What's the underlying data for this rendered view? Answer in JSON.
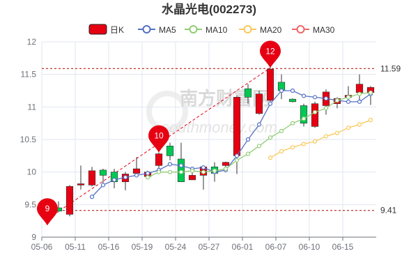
{
  "chart_data": {
    "type": "candlestick",
    "title": "水晶光电(002273)",
    "legend": [
      {
        "label": "日K",
        "color": "#e60012",
        "kind": "box"
      },
      {
        "label": "MA5",
        "color": "#5470c6",
        "kind": "line"
      },
      {
        "label": "MA10",
        "color": "#91cc75",
        "kind": "line"
      },
      {
        "label": "MA20",
        "color": "#fac858",
        "kind": "line"
      },
      {
        "label": "MA30",
        "color": "#ee6666",
        "kind": "line"
      }
    ],
    "ylim": [
      9,
      12
    ],
    "yticks": [
      "9",
      "9.5",
      "10",
      "10.5",
      "11",
      "11.5",
      "12"
    ],
    "x_ticks": [
      "05-06",
      "05-11",
      "05-16",
      "05-19",
      "05-24",
      "05-27",
      "06-01",
      "06-07",
      "06-10",
      "06-15"
    ],
    "up_color": "#e60012",
    "down_color": "#00c853",
    "candles": [
      {
        "o": 9.42,
        "c": 9.55,
        "h": 9.58,
        "l": 9.38,
        "up": true
      },
      {
        "o": 9.45,
        "c": 9.4,
        "h": 9.55,
        "l": 9.38,
        "up": false
      },
      {
        "o": 9.35,
        "c": 9.78,
        "h": 9.8,
        "l": 9.32,
        "up": true
      },
      {
        "o": 9.8,
        "c": 9.82,
        "h": 10.1,
        "l": 9.73,
        "up": true
      },
      {
        "o": 9.8,
        "c": 10.02,
        "h": 10.08,
        "l": 9.78,
        "up": true
      },
      {
        "o": 10.03,
        "c": 9.95,
        "h": 10.05,
        "l": 9.8,
        "up": false
      },
      {
        "o": 10.0,
        "c": 9.85,
        "h": 10.05,
        "l": 9.75,
        "up": false
      },
      {
        "o": 9.85,
        "c": 9.97,
        "h": 10.0,
        "l": 9.72,
        "up": true
      },
      {
        "o": 9.98,
        "c": 10.05,
        "h": 10.23,
        "l": 9.95,
        "up": true
      },
      {
        "o": 9.93,
        "c": 10.0,
        "h": 10.02,
        "l": 9.9,
        "up": true
      },
      {
        "o": 10.1,
        "c": 10.28,
        "h": 10.3,
        "l": 10.05,
        "up": true
      },
      {
        "o": 10.4,
        "c": 10.25,
        "h": 10.45,
        "l": 10.18,
        "up": false
      },
      {
        "o": 10.2,
        "c": 9.85,
        "h": 10.45,
        "l": 9.85,
        "up": false
      },
      {
        "o": 9.88,
        "c": 9.95,
        "h": 10.0,
        "l": 9.88,
        "up": true
      },
      {
        "o": 9.95,
        "c": 10.08,
        "h": 10.1,
        "l": 9.73,
        "up": true
      },
      {
        "o": 10.08,
        "c": 9.98,
        "h": 10.15,
        "l": 9.85,
        "up": false
      },
      {
        "o": 10.1,
        "c": 10.15,
        "h": 10.16,
        "l": 10.07,
        "up": true
      },
      {
        "o": 10.25,
        "c": 11.15,
        "h": 11.18,
        "l": 9.97,
        "up": true
      },
      {
        "o": 11.28,
        "c": 11.15,
        "h": 11.35,
        "l": 11.05,
        "up": false
      },
      {
        "o": 10.9,
        "c": 11.2,
        "h": 11.25,
        "l": 10.88,
        "up": true
      },
      {
        "o": 11.1,
        "c": 11.58,
        "h": 11.6,
        "l": 11.05,
        "up": true
      },
      {
        "o": 11.38,
        "c": 11.25,
        "h": 11.5,
        "l": 11.12,
        "up": false
      },
      {
        "o": 11.12,
        "c": 11.08,
        "h": 11.13,
        "l": 11.07,
        "up": false
      },
      {
        "o": 11.02,
        "c": 10.75,
        "h": 11.05,
        "l": 10.7,
        "up": false
      },
      {
        "o": 10.7,
        "c": 11.05,
        "h": 11.08,
        "l": 10.68,
        "up": true
      },
      {
        "o": 11.02,
        "c": 11.23,
        "h": 11.27,
        "l": 10.88,
        "up": true
      },
      {
        "o": 11.05,
        "c": 11.13,
        "h": 11.15,
        "l": 10.98,
        "up": true
      },
      {
        "o": 11.15,
        "c": 11.18,
        "h": 11.32,
        "l": 11.08,
        "up": true
      },
      {
        "o": 11.22,
        "c": 11.35,
        "h": 11.5,
        "l": 11.1,
        "up": true
      },
      {
        "o": 11.22,
        "c": 11.3,
        "h": 11.32,
        "l": 11.03,
        "up": true
      }
    ],
    "ma5": [
      null,
      null,
      null,
      null,
      9.62,
      9.8,
      9.88,
      9.92,
      9.95,
      9.98,
      10.03,
      10.12,
      10.1,
      10.05,
      10.07,
      10.0,
      10.03,
      10.25,
      10.5,
      10.73,
      11.05,
      11.25,
      11.25,
      11.17,
      11.15,
      11.13,
      11.1,
      11.08,
      11.08,
      11.2
    ],
    "ma10": [
      null,
      null,
      null,
      null,
      null,
      null,
      null,
      null,
      null,
      9.92,
      10.0,
      10.0,
      10.0,
      10.02,
      10.0,
      10.02,
      10.05,
      10.18,
      10.28,
      10.4,
      10.53,
      10.63,
      10.75,
      10.82,
      10.92,
      10.98,
      11.1,
      11.15,
      11.2,
      11.22
    ],
    "ma20": [
      null,
      null,
      null,
      null,
      null,
      null,
      null,
      null,
      null,
      null,
      null,
      null,
      null,
      null,
      null,
      null,
      null,
      null,
      null,
      null,
      10.22,
      10.32,
      10.38,
      10.43,
      10.47,
      10.55,
      10.6,
      10.68,
      10.73,
      10.8
    ],
    "ma30": [],
    "ref_lines": [
      {
        "value": 11.59,
        "label": "11.59"
      },
      {
        "value": 9.41,
        "label": "9.41"
      }
    ],
    "pins": [
      {
        "index": 0,
        "value": 9.18,
        "label": "9"
      },
      {
        "index": 10,
        "value": 10.3,
        "label": "10"
      },
      {
        "index": 20,
        "value": 11.6,
        "label": "12"
      }
    ],
    "grid": true
  },
  "watermark": {
    "text": "南方财富网",
    "subtext": "southmoney.com"
  }
}
